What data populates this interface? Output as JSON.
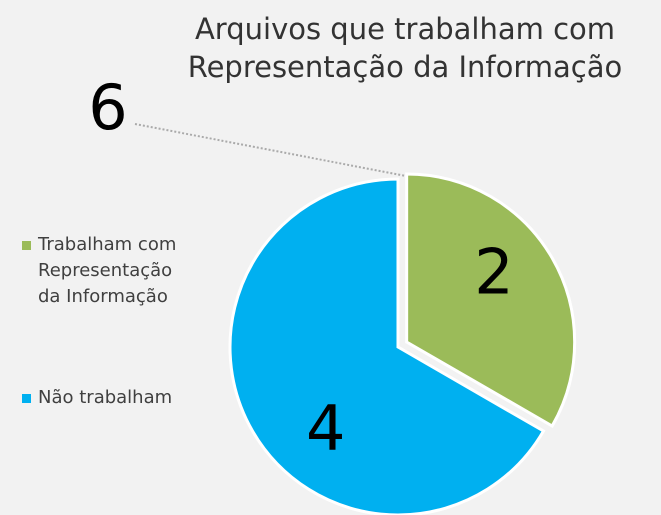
{
  "chart_data": {
    "type": "pie",
    "title": "Arquivos que trabalham com Representação da Informação",
    "categories": [
      "Trabalham com Representação da Informação",
      "Não trabalham"
    ],
    "values": [
      2,
      4
    ],
    "colors": [
      "#9bbb59",
      "#00b0f0"
    ],
    "annotation": "6",
    "legend": "left"
  }
}
